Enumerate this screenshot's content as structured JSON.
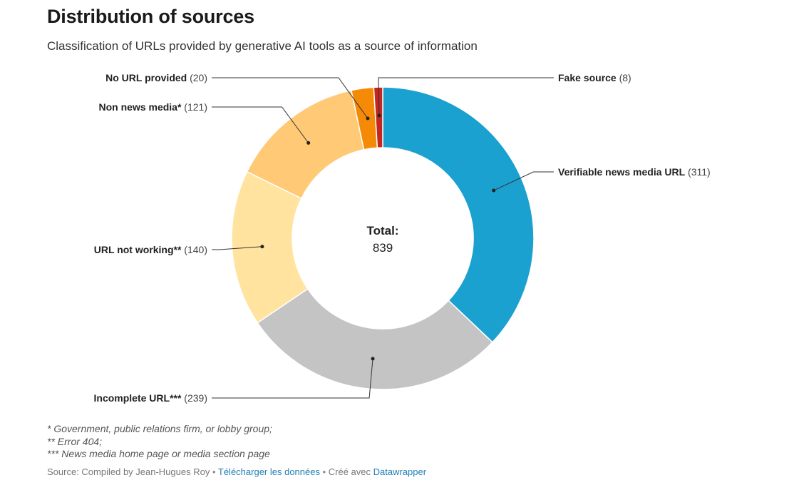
{
  "header": {
    "title": "Distribution of sources",
    "subtitle": "Classification of URLs provided by generative AI tools as a source of information"
  },
  "center": {
    "label": "Total:",
    "value": "839"
  },
  "chart_data": {
    "type": "pie",
    "variant": "donut",
    "title": "Distribution of sources",
    "subtitle": "Classification of URLs provided by generative AI tools as a source of information",
    "total": 839,
    "slices": [
      {
        "name": "Verifiable news media URL",
        "count": "(311)",
        "value": 311,
        "color": "#1aa1cf"
      },
      {
        "name": "Incomplete URL***",
        "count": "(239)",
        "value": 239,
        "color": "#c4c4c4"
      },
      {
        "name": "URL not working**",
        "count": "(140)",
        "value": 140,
        "color": "#ffe39e"
      },
      {
        "name": "Non news media*",
        "count": "(121)",
        "value": 121,
        "color": "#ffc976"
      },
      {
        "name": "No URL provided",
        "count": "(20)",
        "value": 20,
        "color": "#f58a07"
      },
      {
        "name": "Fake source",
        "count": "(8)",
        "value": 8,
        "color": "#c3271f"
      }
    ]
  },
  "notes": [
    "* Government, public relations firm, or lobby group;",
    "** Error 404;",
    "*** News media home page or media section page"
  ],
  "footer": {
    "source_text": "Source: Compiled by Jean-Hugues Roy",
    "separator": " • ",
    "download_link": "Télécharger les données",
    "created_with": "Créé avec ",
    "tool_link": "Datawrapper"
  }
}
